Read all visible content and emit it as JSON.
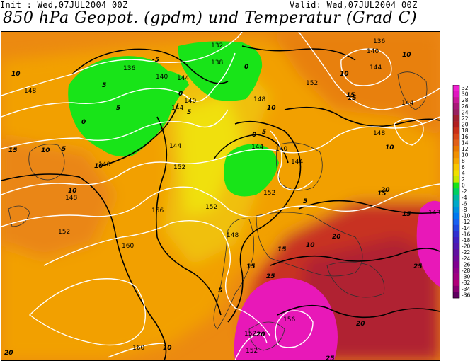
{
  "header": {
    "init": "Init : Wed,07JUL2004 00Z",
    "valid": "Valid: Wed,07JUL2004 00Z",
    "title": "850 hPa Geopot. (gpdm) und Temperatur (Grad C)"
  },
  "colors": {
    "temp_0_to_2": "#18e418",
    "temp_6": "#e8e800",
    "temp_10": "#f5a800",
    "temp_14": "#e87800",
    "temp_18": "#d84818",
    "temp_22": "#b82828",
    "temp_26": "#e818a8",
    "geopotential_lines": "#ffffff",
    "isotherm_lines": "#000000"
  },
  "geopotential_labels": [
    "136",
    "132",
    "136",
    "138",
    "140",
    "140",
    "144",
    "144",
    "144",
    "140",
    "148",
    "148",
    "152",
    "144",
    "152",
    "144",
    "148",
    "140",
    "144",
    "140",
    "144",
    "148",
    "152",
    "152",
    "156",
    "152",
    "148",
    "160",
    "152",
    "156",
    "152",
    "160",
    "143"
  ],
  "temperature_labels": [
    "10",
    "10",
    "5",
    "0",
    "5",
    "0",
    "5",
    "0",
    "-5",
    "0",
    "5",
    "10",
    "15",
    "10",
    "5",
    "10",
    "10",
    "10",
    "15",
    "15",
    "15",
    "10",
    "5",
    "10",
    "15",
    "20",
    "15",
    "20",
    "25",
    "15",
    "25",
    "20",
    "10",
    "20",
    "25",
    "20",
    "5"
  ],
  "colorbar": {
    "labels": [
      "32",
      "30",
      "28",
      "26",
      "24",
      "22",
      "20",
      "18",
      "16",
      "14",
      "12",
      "10",
      "8",
      "6",
      "4",
      "2",
      "0",
      "-2",
      "-4",
      "-6",
      "-8",
      "-10",
      "-12",
      "-14",
      "-16",
      "-18",
      "-20",
      "-22",
      "-24",
      "-26",
      "-28",
      "-30",
      "-32",
      "-34",
      "-36"
    ],
    "colors": [
      "#f020d0",
      "#e018c0",
      "#c81898",
      "#a81878",
      "#982060",
      "#a02030",
      "#b02020",
      "#c83018",
      "#d84818",
      "#e06018",
      "#e87800",
      "#f09000",
      "#f5a800",
      "#f8c800",
      "#f0e000",
      "#c8e800",
      "#18e418",
      "#00d060",
      "#00b8a0",
      "#00a8c8",
      "#0090e0",
      "#0078f0",
      "#1860f0",
      "#2048e0",
      "#3030d0",
      "#4020c0",
      "#5018b0",
      "#6010a0",
      "#700898",
      "#800090",
      "#900088",
      "#a00080",
      "#b00078",
      "#880070",
      "#600060"
    ]
  }
}
